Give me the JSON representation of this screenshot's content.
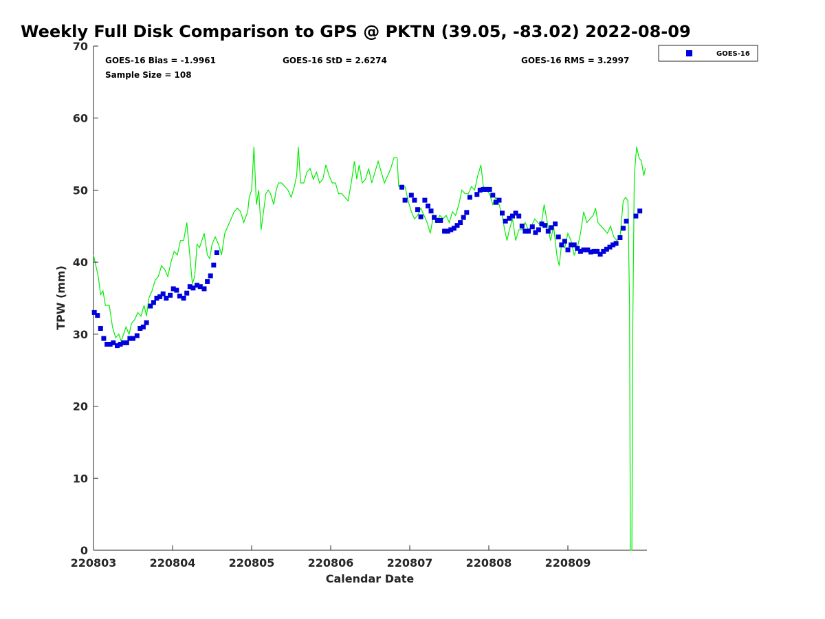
{
  "chart_data": {
    "type": "scatter",
    "title": "Weekly Full Disk Comparison to GPS @ PKTN (39.05, -83.02) 2022-08-09",
    "xlabel": "Calendar Date",
    "ylabel": "TPW (mm)",
    "ylim": [
      0,
      70
    ],
    "xlim": [
      0,
      7
    ],
    "x_ticks": [
      "220803",
      "220804",
      "220805",
      "220806",
      "220807",
      "220808",
      "220809"
    ],
    "y_ticks": [
      "0",
      "10",
      "20",
      "30",
      "40",
      "50",
      "60",
      "70"
    ],
    "grid": false,
    "legend_placement": "top-right-outside",
    "stats": {
      "bias": "GOES-16 Bias = -1.9961",
      "std": "GOES-16 StD = 2.6274",
      "rms": "GOES-16 RMS = 3.2997",
      "sample": "Sample Size = 108"
    },
    "series": [
      {
        "name": "GOES-16",
        "marker": "square",
        "color": "#0000dd",
        "points": [
          [
            0.01,
            33.0
          ],
          [
            0.05,
            32.6
          ],
          [
            0.09,
            30.8
          ],
          [
            0.13,
            29.4
          ],
          [
            0.17,
            28.6
          ],
          [
            0.21,
            28.6
          ],
          [
            0.25,
            28.8
          ],
          [
            0.3,
            28.4
          ],
          [
            0.34,
            28.6
          ],
          [
            0.38,
            28.8
          ],
          [
            0.42,
            28.8
          ],
          [
            0.46,
            29.4
          ],
          [
            0.5,
            29.4
          ],
          [
            0.55,
            29.8
          ],
          [
            0.59,
            30.8
          ],
          [
            0.63,
            31.0
          ],
          [
            0.67,
            31.6
          ],
          [
            0.72,
            33.9
          ],
          [
            0.76,
            34.4
          ],
          [
            0.8,
            35.0
          ],
          [
            0.84,
            35.2
          ],
          [
            0.88,
            35.6
          ],
          [
            0.92,
            35.0
          ],
          [
            0.97,
            35.4
          ],
          [
            1.01,
            36.3
          ],
          [
            1.05,
            36.1
          ],
          [
            1.09,
            35.3
          ],
          [
            1.14,
            35.0
          ],
          [
            1.18,
            35.7
          ],
          [
            1.22,
            36.6
          ],
          [
            1.26,
            36.4
          ],
          [
            1.31,
            36.8
          ],
          [
            1.35,
            36.6
          ],
          [
            1.4,
            36.3
          ],
          [
            1.44,
            37.3
          ],
          [
            1.48,
            38.1
          ],
          [
            1.52,
            39.6
          ],
          [
            1.56,
            41.3
          ],
          [
            3.9,
            50.4
          ],
          [
            3.94,
            48.6
          ],
          [
            4.02,
            49.3
          ],
          [
            4.06,
            48.6
          ],
          [
            4.1,
            47.3
          ],
          [
            4.14,
            46.3
          ],
          [
            4.19,
            48.6
          ],
          [
            4.23,
            47.8
          ],
          [
            4.27,
            47.1
          ],
          [
            4.31,
            46.2
          ],
          [
            4.35,
            45.8
          ],
          [
            4.39,
            45.8
          ],
          [
            4.44,
            44.3
          ],
          [
            4.48,
            44.3
          ],
          [
            4.52,
            44.5
          ],
          [
            4.56,
            44.7
          ],
          [
            4.6,
            45.1
          ],
          [
            4.64,
            45.5
          ],
          [
            4.68,
            46.2
          ],
          [
            4.72,
            46.9
          ],
          [
            4.76,
            49.0
          ],
          [
            4.85,
            49.4
          ],
          [
            4.89,
            50.0
          ],
          [
            4.93,
            50.1
          ],
          [
            4.97,
            50.1
          ],
          [
            5.01,
            50.1
          ],
          [
            5.05,
            49.3
          ],
          [
            5.09,
            48.3
          ],
          [
            5.13,
            48.6
          ],
          [
            5.17,
            46.8
          ],
          [
            5.21,
            45.7
          ],
          [
            5.26,
            46.1
          ],
          [
            5.3,
            46.4
          ],
          [
            5.34,
            46.8
          ],
          [
            5.38,
            46.4
          ],
          [
            5.42,
            45.0
          ],
          [
            5.46,
            44.3
          ],
          [
            5.5,
            44.3
          ],
          [
            5.55,
            44.9
          ],
          [
            5.59,
            44.1
          ],
          [
            5.63,
            44.5
          ],
          [
            5.67,
            45.3
          ],
          [
            5.71,
            45.1
          ],
          [
            5.75,
            44.3
          ],
          [
            5.79,
            44.8
          ],
          [
            5.84,
            45.3
          ],
          [
            5.88,
            43.5
          ],
          [
            5.92,
            42.4
          ],
          [
            5.96,
            42.9
          ],
          [
            6.0,
            41.7
          ],
          [
            6.04,
            42.4
          ],
          [
            6.08,
            42.4
          ],
          [
            6.12,
            41.9
          ],
          [
            6.16,
            41.5
          ],
          [
            6.2,
            41.7
          ],
          [
            6.25,
            41.7
          ],
          [
            6.29,
            41.4
          ],
          [
            6.33,
            41.5
          ],
          [
            6.37,
            41.5
          ],
          [
            6.41,
            41.1
          ],
          [
            6.45,
            41.5
          ],
          [
            6.49,
            41.8
          ],
          [
            6.53,
            42.1
          ],
          [
            6.57,
            42.4
          ],
          [
            6.61,
            42.6
          ],
          [
            6.66,
            43.4
          ],
          [
            6.7,
            44.7
          ],
          [
            6.74,
            45.7
          ],
          [
            6.86,
            46.4
          ],
          [
            6.91,
            47.1
          ]
        ]
      },
      {
        "name": "",
        "marker": "line",
        "color": "#00ee00",
        "points": [
          [
            0.0,
            41.0
          ],
          [
            0.04,
            39.0
          ],
          [
            0.06,
            38.0
          ],
          [
            0.09,
            35.5
          ],
          [
            0.12,
            36.0
          ],
          [
            0.15,
            34.0
          ],
          [
            0.2,
            34.0
          ],
          [
            0.24,
            31.0
          ],
          [
            0.28,
            29.5
          ],
          [
            0.32,
            30.0
          ],
          [
            0.35,
            29.0
          ],
          [
            0.38,
            30.0
          ],
          [
            0.41,
            31.0
          ],
          [
            0.45,
            30.0
          ],
          [
            0.48,
            31.5
          ],
          [
            0.52,
            32.0
          ],
          [
            0.56,
            33.0
          ],
          [
            0.6,
            32.5
          ],
          [
            0.64,
            34.0
          ],
          [
            0.67,
            32.5
          ],
          [
            0.7,
            35.0
          ],
          [
            0.74,
            36.0
          ],
          [
            0.78,
            37.5
          ],
          [
            0.82,
            38.0
          ],
          [
            0.86,
            39.5
          ],
          [
            0.9,
            39.0
          ],
          [
            0.94,
            38.0
          ],
          [
            0.98,
            40.0
          ],
          [
            1.02,
            41.5
          ],
          [
            1.06,
            41.0
          ],
          [
            1.1,
            43.0
          ],
          [
            1.14,
            43.0
          ],
          [
            1.18,
            45.5
          ],
          [
            1.21,
            42.0
          ],
          [
            1.25,
            37.0
          ],
          [
            1.28,
            38.0
          ],
          [
            1.31,
            42.5
          ],
          [
            1.34,
            42.0
          ],
          [
            1.37,
            43.0
          ],
          [
            1.4,
            44.0
          ],
          [
            1.44,
            41.0
          ],
          [
            1.47,
            40.5
          ],
          [
            1.5,
            42.5
          ],
          [
            1.54,
            43.5
          ],
          [
            1.58,
            42.5
          ],
          [
            1.62,
            41.0
          ],
          [
            1.66,
            44.0
          ],
          [
            1.7,
            45.0
          ],
          [
            1.74,
            46.0
          ],
          [
            1.78,
            47.0
          ],
          [
            1.82,
            47.5
          ],
          [
            1.86,
            47.0
          ],
          [
            1.9,
            45.5
          ],
          [
            1.95,
            47.0
          ],
          [
            1.97,
            49.0
          ],
          [
            2.0,
            50.0
          ],
          [
            2.03,
            56.0
          ],
          [
            2.06,
            48.0
          ],
          [
            2.09,
            50.0
          ],
          [
            2.12,
            44.5
          ],
          [
            2.15,
            47.0
          ],
          [
            2.18,
            49.5
          ],
          [
            2.21,
            50.0
          ],
          [
            2.24,
            49.5
          ],
          [
            2.28,
            48.0
          ],
          [
            2.31,
            50.0
          ],
          [
            2.34,
            51.0
          ],
          [
            2.38,
            51.0
          ],
          [
            2.42,
            50.5
          ],
          [
            2.46,
            50.0
          ],
          [
            2.5,
            49.0
          ],
          [
            2.54,
            50.5
          ],
          [
            2.57,
            52.0
          ],
          [
            2.59,
            56.0
          ],
          [
            2.62,
            51.0
          ],
          [
            2.66,
            51.0
          ],
          [
            2.7,
            52.5
          ],
          [
            2.74,
            53.0
          ],
          [
            2.78,
            51.5
          ],
          [
            2.82,
            52.5
          ],
          [
            2.86,
            51.0
          ],
          [
            2.9,
            51.5
          ],
          [
            2.94,
            53.5
          ],
          [
            2.98,
            52.0
          ],
          [
            3.02,
            51.0
          ],
          [
            3.06,
            51.0
          ],
          [
            3.1,
            49.5
          ],
          [
            3.14,
            49.5
          ],
          [
            3.18,
            49.0
          ],
          [
            3.22,
            48.5
          ],
          [
            3.26,
            51.0
          ],
          [
            3.3,
            54.0
          ],
          [
            3.33,
            51.5
          ],
          [
            3.36,
            53.5
          ],
          [
            3.4,
            51.0
          ],
          [
            3.44,
            51.5
          ],
          [
            3.48,
            53.0
          ],
          [
            3.52,
            51.0
          ],
          [
            3.56,
            52.5
          ],
          [
            3.6,
            54.0
          ],
          [
            3.64,
            52.5
          ],
          [
            3.68,
            51.0
          ],
          [
            3.72,
            52.0
          ],
          [
            3.76,
            53.0
          ],
          [
            3.8,
            54.5
          ],
          [
            3.84,
            54.5
          ],
          [
            3.86,
            50.5
          ],
          [
            3.9,
            50.5
          ],
          [
            3.94,
            50.5
          ],
          [
            3.98,
            48.5
          ],
          [
            4.02,
            47.0
          ],
          [
            4.06,
            46.0
          ],
          [
            4.1,
            46.5
          ],
          [
            4.14,
            47.5
          ],
          [
            4.18,
            46.5
          ],
          [
            4.22,
            45.5
          ],
          [
            4.26,
            44.0
          ],
          [
            4.3,
            46.5
          ],
          [
            4.34,
            45.5
          ],
          [
            4.38,
            46.5
          ],
          [
            4.42,
            46.0
          ],
          [
            4.46,
            46.5
          ],
          [
            4.5,
            45.5
          ],
          [
            4.54,
            47.0
          ],
          [
            4.58,
            46.5
          ],
          [
            4.62,
            48.0
          ],
          [
            4.66,
            50.0
          ],
          [
            4.7,
            49.5
          ],
          [
            4.74,
            49.5
          ],
          [
            4.78,
            50.5
          ],
          [
            4.82,
            50.0
          ],
          [
            4.86,
            52.0
          ],
          [
            4.9,
            53.5
          ],
          [
            4.93,
            50.5
          ],
          [
            4.97,
            50.0
          ],
          [
            5.01,
            49.5
          ],
          [
            5.05,
            48.0
          ],
          [
            5.09,
            49.0
          ],
          [
            5.13,
            48.0
          ],
          [
            5.17,
            46.5
          ],
          [
            5.2,
            44.5
          ],
          [
            5.23,
            43.0
          ],
          [
            5.26,
            44.5
          ],
          [
            5.3,
            46.0
          ],
          [
            5.34,
            43.0
          ],
          [
            5.38,
            44.5
          ],
          [
            5.42,
            44.5
          ],
          [
            5.46,
            45.5
          ],
          [
            5.5,
            44.5
          ],
          [
            5.54,
            45.0
          ],
          [
            5.58,
            46.0
          ],
          [
            5.62,
            45.5
          ],
          [
            5.66,
            45.0
          ],
          [
            5.7,
            48.0
          ],
          [
            5.74,
            45.5
          ],
          [
            5.78,
            43.0
          ],
          [
            5.82,
            45.0
          ],
          [
            5.86,
            41.0
          ],
          [
            5.89,
            39.5
          ],
          [
            5.92,
            42.5
          ],
          [
            5.96,
            42.0
          ],
          [
            6.0,
            44.0
          ],
          [
            6.04,
            43.0
          ],
          [
            6.08,
            41.0
          ],
          [
            6.12,
            42.0
          ],
          [
            6.16,
            44.0
          ],
          [
            6.2,
            47.0
          ],
          [
            6.24,
            45.5
          ],
          [
            6.28,
            46.0
          ],
          [
            6.32,
            46.5
          ],
          [
            6.35,
            47.5
          ],
          [
            6.38,
            45.5
          ],
          [
            6.42,
            45.0
          ],
          [
            6.46,
            44.5
          ],
          [
            6.5,
            44.0
          ],
          [
            6.54,
            45.0
          ],
          [
            6.58,
            43.5
          ],
          [
            6.62,
            43.0
          ],
          [
            6.66,
            43.5
          ],
          [
            6.7,
            48.5
          ],
          [
            6.73,
            49.0
          ],
          [
            6.76,
            48.5
          ],
          [
            6.78,
            34.0
          ],
          [
            6.79,
            0.0
          ],
          [
            6.81,
            0.0
          ],
          [
            6.82,
            30.0
          ],
          [
            6.84,
            52.0
          ],
          [
            6.87,
            56.0
          ],
          [
            6.9,
            54.5
          ],
          [
            6.93,
            54.0
          ],
          [
            6.96,
            52.0
          ],
          [
            6.98,
            53.0
          ]
        ]
      }
    ]
  },
  "colors": {
    "goes_marker": "#0000dd",
    "gps_line": "#00ee00",
    "axis": "#262626"
  }
}
